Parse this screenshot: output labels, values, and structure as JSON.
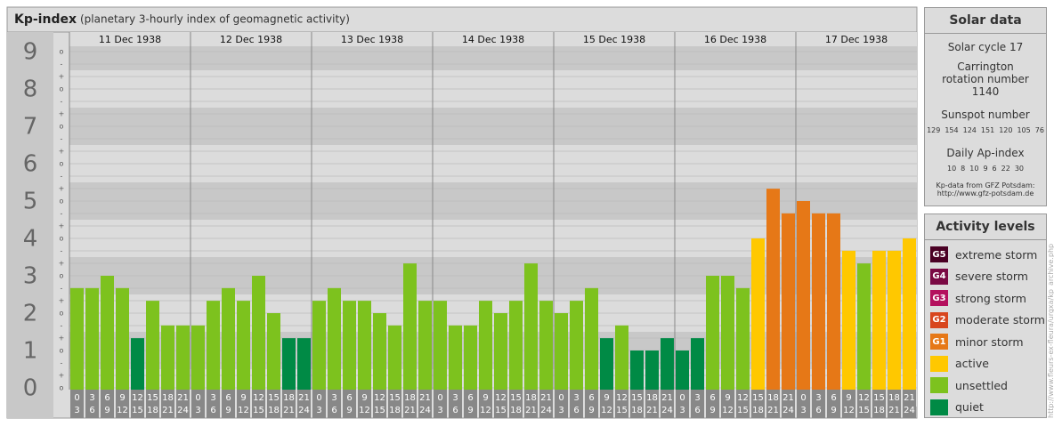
{
  "chart_data": {
    "type": "bar",
    "title": "Kp-index",
    "subtitle": "(planetary 3-hourly index of geomagnetic activity)",
    "days": [
      "11 Dec 1938",
      "12 Dec 1938",
      "13 Dec 1938",
      "14 Dec 1938",
      "15 Dec 1938",
      "16 Dec 1938",
      "17 Dec 1938"
    ],
    "hours_start": [
      "0",
      "3",
      "6",
      "9",
      "12",
      "15",
      "18",
      "21"
    ],
    "hours_end": [
      "3",
      "6",
      "9",
      "12",
      "15",
      "18",
      "21",
      "24"
    ],
    "values": [
      2.67,
      2.67,
      3,
      2.67,
      1.33,
      2.33,
      1.67,
      1.67,
      1.67,
      2.33,
      2.67,
      2.33,
      3,
      2,
      1.33,
      1.33,
      2.33,
      2.67,
      2.33,
      2.33,
      2,
      1.67,
      3.33,
      2.33,
      2.33,
      1.67,
      1.67,
      2.33,
      2,
      2.33,
      3.33,
      2.33,
      2,
      2.33,
      2.67,
      1.33,
      1.67,
      1,
      1,
      1.33,
      1,
      1.33,
      3,
      3,
      2.67,
      4,
      5.33,
      4.67,
      5,
      4.67,
      4.67,
      3.67,
      3.33,
      3.67,
      3.67,
      4
    ],
    "colors": [
      "#7dc21e",
      "#7dc21e",
      "#7dc21e",
      "#7dc21e",
      "#008a45",
      "#7dc21e",
      "#7dc21e",
      "#7dc21e",
      "#7dc21e",
      "#7dc21e",
      "#7dc21e",
      "#7dc21e",
      "#7dc21e",
      "#7dc21e",
      "#008a45",
      "#008a45",
      "#7dc21e",
      "#7dc21e",
      "#7dc21e",
      "#7dc21e",
      "#7dc21e",
      "#7dc21e",
      "#7dc21e",
      "#7dc21e",
      "#7dc21e",
      "#7dc21e",
      "#7dc21e",
      "#7dc21e",
      "#7dc21e",
      "#7dc21e",
      "#7dc21e",
      "#7dc21e",
      "#7dc21e",
      "#7dc21e",
      "#7dc21e",
      "#008a45",
      "#7dc21e",
      "#008a45",
      "#008a45",
      "#008a45",
      "#008a45",
      "#008a45",
      "#7dc21e",
      "#7dc21e",
      "#7dc21e",
      "#ffc800",
      "#e67817",
      "#e67817",
      "#e67817",
      "#e67817",
      "#e67817",
      "#ffc800",
      "#7dc21e",
      "#ffc800",
      "#ffc800",
      "#ffc800"
    ],
    "ylim": [
      0,
      9
    ],
    "yticks": [
      0,
      1,
      2,
      3,
      4,
      5,
      6,
      7,
      8,
      9
    ],
    "minor_marks": [
      "-",
      "o",
      "+"
    ]
  },
  "solar_data": {
    "title": "Solar data",
    "cycle": "Solar cycle 17",
    "carrington": "Carrington rotation number 1140",
    "sunspot_title": "Sunspot number",
    "sunspot": [
      129,
      154,
      124,
      151,
      120,
      105,
      76
    ],
    "ap_title": "Daily Ap-index",
    "ap": [
      10,
      8,
      10,
      9,
      6,
      22,
      30
    ],
    "credit": "Kp-data from GFZ Potsdam: http://www.gfz-potsdam.de"
  },
  "activity_levels": {
    "title": "Activity levels",
    "items": [
      {
        "code": "G5",
        "label": "extreme storm",
        "color": "#4a0024"
      },
      {
        "code": "G4",
        "label": "severe storm",
        "color": "#7a0a44"
      },
      {
        "code": "G3",
        "label": "strong storm",
        "color": "#b4105e"
      },
      {
        "code": "G2",
        "label": "moderate storm",
        "color": "#d8461e"
      },
      {
        "code": "G1",
        "label": "minor storm",
        "color": "#e67817"
      },
      {
        "label": "active",
        "color": "#ffc800"
      },
      {
        "label": "unsettled",
        "color": "#7dc21e"
      },
      {
        "label": "quiet",
        "color": "#008a45"
      }
    ]
  },
  "side_url": "http://www.fleurs-ex-fleura/urgxa/kp_archive.php"
}
